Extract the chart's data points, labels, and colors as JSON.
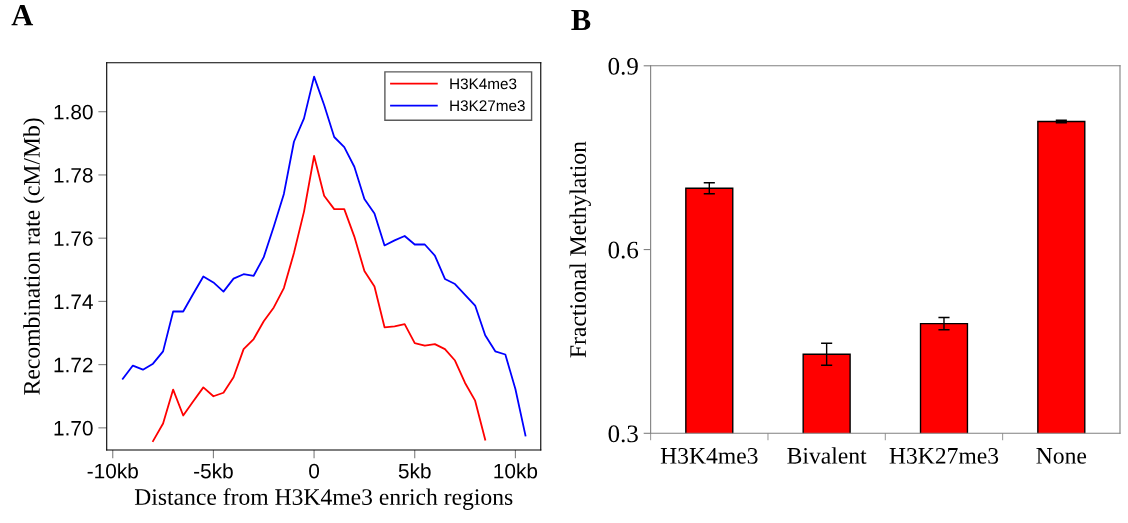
{
  "chart_data": [
    {
      "type": "line",
      "title": "A",
      "xlabel": "Distance from H3K4me3 enrich regions",
      "ylabel": "Recombination rate (cM/Mb)",
      "x": [
        -9.5,
        -9,
        -8.5,
        -8,
        -7.5,
        -7,
        -6.5,
        -6,
        -5.5,
        -5,
        -4.5,
        -4,
        -3.5,
        -3,
        -2.5,
        -2,
        -1.5,
        -1,
        -0.5,
        0,
        0.5,
        1,
        1.5,
        2,
        2.5,
        3,
        3.5,
        4,
        4.5,
        5,
        5.5,
        6,
        6.5,
        7,
        7.5,
        8,
        8.5,
        9,
        9.5,
        10,
        10.5
      ],
      "series": [
        {
          "name": "H3K4me3",
          "color": "#ff0000",
          "values": [
            null,
            null,
            null,
            1.6958,
            1.7014,
            1.7121,
            1.7039,
            1.7084,
            1.7128,
            1.71,
            1.7111,
            1.716,
            1.7249,
            1.7281,
            1.7337,
            1.7381,
            1.7442,
            1.7553,
            1.7684,
            1.786,
            1.7734,
            1.7692,
            1.7692,
            1.7605,
            1.7496,
            1.7447,
            1.7318,
            1.7321,
            1.7328,
            1.7268,
            1.726,
            1.7265,
            1.7249,
            1.7213,
            1.7142,
            1.7086,
            1.6963,
            null,
            null,
            null,
            null
          ]
        },
        {
          "name": "H3K27me3",
          "color": "#0000ff",
          "values": [
            1.7155,
            1.7197,
            1.7184,
            1.7203,
            1.7242,
            1.7368,
            1.7368,
            1.7424,
            1.7479,
            1.746,
            1.7431,
            1.7472,
            1.7486,
            1.7481,
            1.754,
            1.7637,
            1.774,
            1.7905,
            1.7979,
            1.8111,
            1.8021,
            1.792,
            1.7888,
            1.7826,
            1.7724,
            1.7678,
            1.7577,
            1.7593,
            1.7607,
            1.758,
            1.758,
            1.7545,
            1.7471,
            1.7455,
            1.7421,
            1.7387,
            1.7293,
            1.7242,
            1.7232,
            1.7123,
            1.6976
          ]
        }
      ],
      "xlim": [
        -10.3,
        11.26
      ],
      "xticks": [
        {
          "value": -10,
          "label": "-10kb"
        },
        {
          "value": -5,
          "label": "-5kb"
        },
        {
          "value": 0,
          "label": "0"
        },
        {
          "value": 5,
          "label": "5kb"
        },
        {
          "value": 10,
          "label": "10kb"
        }
      ],
      "ylim": [
        1.693,
        1.8155
      ],
      "yticks": [
        {
          "value": 1.7,
          "label": "1.70"
        },
        {
          "value": 1.72,
          "label": "1.72"
        },
        {
          "value": 1.74,
          "label": "1.74"
        },
        {
          "value": 1.76,
          "label": "1.76"
        },
        {
          "value": 1.78,
          "label": "1.78"
        },
        {
          "value": 1.8,
          "label": "1.80"
        }
      ],
      "legend": "top right",
      "grid": false,
      "marker": "none",
      "line_style": "solid"
    },
    {
      "type": "bar",
      "title": "B",
      "ylabel": "Fractional Methylation",
      "categories": [
        "H3K4me3",
        "Bivalent",
        "H3K27me3",
        "None"
      ],
      "values": [
        0.7,
        0.429,
        0.479,
        0.809
      ],
      "errors": [
        0.009,
        0.018,
        0.01,
        0.002
      ],
      "color": "#ff0000",
      "ylim": [
        0.3,
        0.9
      ],
      "yticks": [
        0.3,
        0.6,
        0.9
      ],
      "grid": false
    }
  ]
}
